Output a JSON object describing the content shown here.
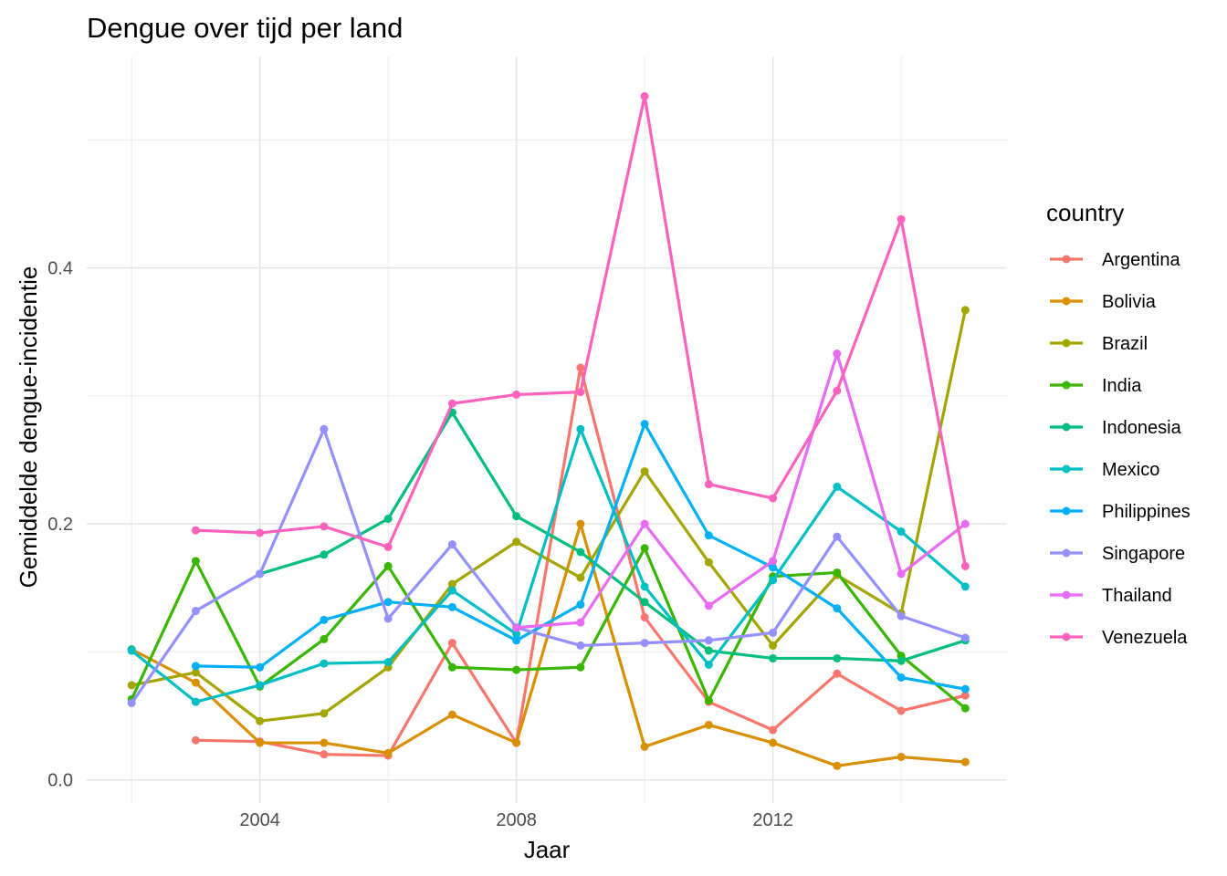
{
  "chart_data": {
    "type": "line",
    "title": "Dengue over tijd per land",
    "xlabel": "Jaar",
    "ylabel": "Gemiddelde dengue-incidentie",
    "x": [
      2002,
      2003,
      2004,
      2005,
      2006,
      2007,
      2008,
      2009,
      2010,
      2011,
      2012,
      2013,
      2014,
      2015
    ],
    "xlim": [
      2001.3,
      2015.65
    ],
    "ylim": [
      -0.018,
      0.565
    ],
    "x_ticks": [
      2004,
      2008,
      2012
    ],
    "x_tick_labels": [
      "2004",
      "2008",
      "2012"
    ],
    "x_minor_ticks": [
      2002,
      2006,
      2010,
      2014
    ],
    "y_ticks": [
      0.0,
      0.2,
      0.4
    ],
    "y_tick_labels": [
      "0.0",
      "0.2",
      "0.4"
    ],
    "y_minor_ticks": [
      0.1,
      0.3,
      0.5
    ],
    "grid": true,
    "legend": {
      "title": "country",
      "position": "right"
    },
    "series": [
      {
        "name": "Argentina",
        "color": "#F8766D",
        "values": [
          null,
          0.031,
          0.03,
          0.02,
          0.019,
          0.107,
          0.029,
          0.322,
          0.127,
          0.061,
          0.039,
          0.083,
          0.054,
          0.066
        ]
      },
      {
        "name": "Bolivia",
        "color": "#D89000",
        "values": [
          0.102,
          0.076,
          0.029,
          0.029,
          0.021,
          0.051,
          0.029,
          0.2,
          0.026,
          0.043,
          0.029,
          0.011,
          0.018,
          0.014
        ]
      },
      {
        "name": "Brazil",
        "color": "#A3A500",
        "values": [
          0.074,
          0.084,
          0.046,
          0.052,
          0.088,
          0.153,
          0.186,
          0.158,
          0.241,
          0.17,
          0.105,
          0.16,
          0.13,
          0.367
        ]
      },
      {
        "name": "India",
        "color": "#39B600",
        "values": [
          0.063,
          0.171,
          0.073,
          0.11,
          0.167,
          0.088,
          0.086,
          0.088,
          0.181,
          0.062,
          0.159,
          0.162,
          0.097,
          0.056
        ]
      },
      {
        "name": "Indonesia",
        "color": "#00BF7D",
        "values": [
          0.102,
          null,
          0.161,
          0.176,
          0.204,
          0.287,
          0.206,
          0.178,
          0.139,
          0.101,
          0.095,
          0.095,
          0.093,
          0.109
        ]
      },
      {
        "name": "Mexico",
        "color": "#00BFC4",
        "values": [
          0.101,
          0.061,
          0.074,
          0.091,
          0.092,
          0.148,
          0.114,
          0.274,
          0.151,
          0.09,
          0.156,
          0.229,
          0.194,
          0.151
        ]
      },
      {
        "name": "Philippines",
        "color": "#00B0F6",
        "values": [
          null,
          0.089,
          0.088,
          0.125,
          0.139,
          0.135,
          0.109,
          0.137,
          0.278,
          0.191,
          0.166,
          0.134,
          0.08,
          0.071
        ]
      },
      {
        "name": "Singapore",
        "color": "#9590FF",
        "values": [
          0.06,
          0.132,
          0.161,
          0.274,
          0.126,
          0.184,
          0.119,
          0.105,
          0.107,
          0.109,
          0.115,
          0.19,
          0.128,
          0.111
        ]
      },
      {
        "name": "Thailand",
        "color": "#E76BF3",
        "values": [
          null,
          null,
          null,
          null,
          null,
          null,
          0.119,
          0.123,
          0.2,
          0.136,
          0.171,
          0.333,
          0.161,
          0.2
        ]
      },
      {
        "name": "Venezuela",
        "color": "#FF62BC",
        "values": [
          null,
          0.195,
          0.193,
          0.198,
          0.182,
          0.294,
          0.301,
          0.303,
          0.534,
          0.231,
          0.22,
          0.304,
          0.438,
          0.167
        ]
      }
    ]
  }
}
